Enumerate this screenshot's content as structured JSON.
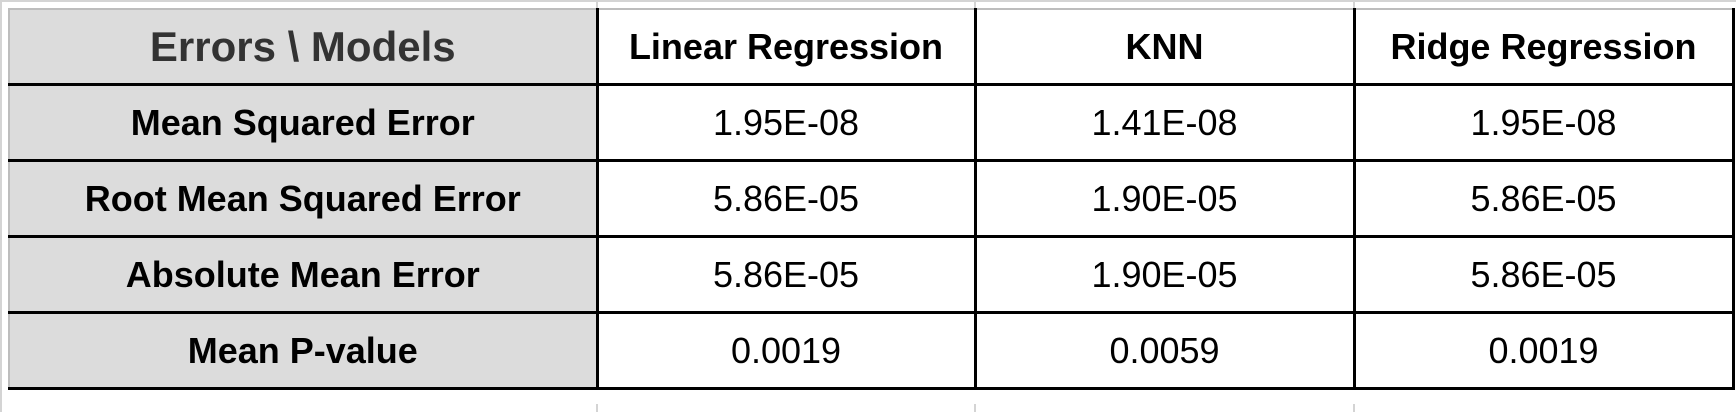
{
  "table": {
    "corner_label": "Errors \\ Models",
    "columns": [
      "Linear Regression",
      "KNN",
      "Ridge Regression"
    ],
    "rows": [
      {
        "label": "Mean Squared Error",
        "values": [
          "1.95E-08",
          "1.41E-08",
          "1.95E-08"
        ]
      },
      {
        "label": "Root Mean Squared Error",
        "values": [
          "5.86E-05",
          "1.90E-05",
          "5.86E-05"
        ]
      },
      {
        "label": "Absolute Mean Error",
        "values": [
          "5.86E-05",
          "1.90E-05",
          "5.86E-05"
        ]
      },
      {
        "label": "Mean P-value",
        "values": [
          "0.0019",
          "0.0059",
          "0.0019"
        ]
      }
    ]
  },
  "colors": {
    "header_fill": "#dcdcdc",
    "border": "#000000",
    "gridline": "#d4d4d4"
  }
}
